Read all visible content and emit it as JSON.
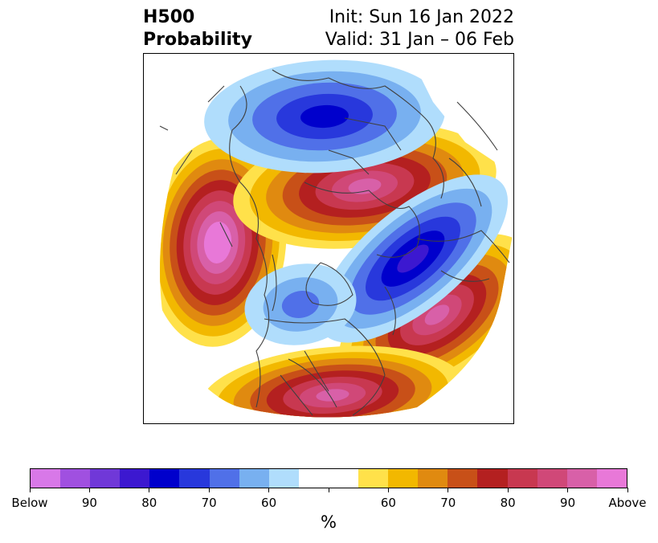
{
  "title": {
    "left_line1": "H500",
    "left_line2": "Probability",
    "right_line1": "Init: Sun 16 Jan 2022",
    "right_line2": "Valid: 31 Jan – 06 Feb"
  },
  "colorbar": {
    "unit": "%",
    "colors": [
      "#d878e8",
      "#a050e0",
      "#7038d8",
      "#3c18d0",
      "#0000cc",
      "#2838dc",
      "#5070e8",
      "#78b0f0",
      "#b0ddfc",
      "#ffffff",
      "#ffffff",
      "#ffe14a",
      "#f2b800",
      "#e08a10",
      "#c85018",
      "#b42020",
      "#c83850",
      "#d04878",
      "#d860a8",
      "#e878d8"
    ],
    "ticks": [
      {
        "label": "Below",
        "index": 0
      },
      {
        "label": "90",
        "index": 2
      },
      {
        "label": "80",
        "index": 4
      },
      {
        "label": "70",
        "index": 6
      },
      {
        "label": "60",
        "index": 8
      },
      {
        "label": "",
        "index": 10
      },
      {
        "label": "60",
        "index": 12
      },
      {
        "label": "70",
        "index": 14
      },
      {
        "label": "80",
        "index": 16
      },
      {
        "label": "90",
        "index": 18
      },
      {
        "label": "Above",
        "index": 20
      }
    ]
  },
  "map": {
    "coastline_color": "#404040",
    "anomalies": [
      {
        "name": "above-pacific",
        "sign": "above",
        "level": 10
      },
      {
        "name": "above-arctic",
        "sign": "above",
        "level": 8
      },
      {
        "name": "above-atlantic",
        "sign": "above",
        "level": 8
      },
      {
        "name": "above-southern-us",
        "sign": "above",
        "level": 8
      },
      {
        "name": "below-siberia",
        "sign": "below",
        "level": 5
      },
      {
        "name": "below-europe",
        "sign": "below",
        "level": 6
      },
      {
        "name": "below-canada",
        "sign": "below",
        "level": 3
      }
    ]
  }
}
